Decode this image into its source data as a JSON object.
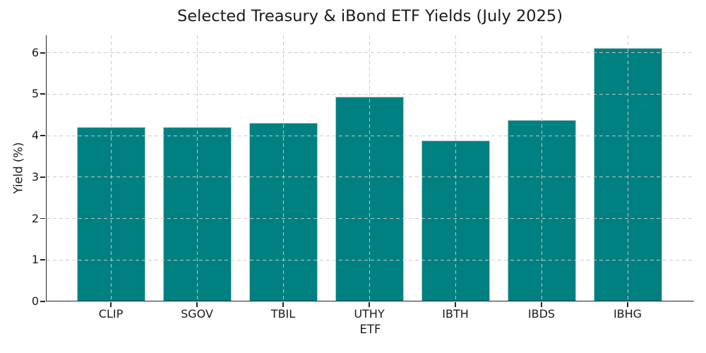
{
  "chart_data": {
    "type": "bar",
    "title": "Selected Treasury & iBond ETF Yields (July 2025)",
    "xlabel": "ETF",
    "ylabel": "Yield (%)",
    "categories": [
      "CLIP",
      "SGOV",
      "TBIL",
      "UTHY",
      "IBTH",
      "IBDS",
      "IBHG"
    ],
    "values": [
      4.19,
      4.19,
      4.3,
      4.93,
      3.86,
      4.36,
      6.1
    ],
    "yticks": [
      0,
      1,
      2,
      3,
      4,
      5,
      6
    ],
    "ylim": [
      0,
      6.42
    ],
    "grid": true,
    "grid_style": "dashed",
    "legend": "none",
    "bar_color": "#008080",
    "bar_edge_color": "#b7c9c9",
    "grid_color": "#cacaca",
    "axis_color": "#262626",
    "text_color": "#1a1a1a"
  }
}
